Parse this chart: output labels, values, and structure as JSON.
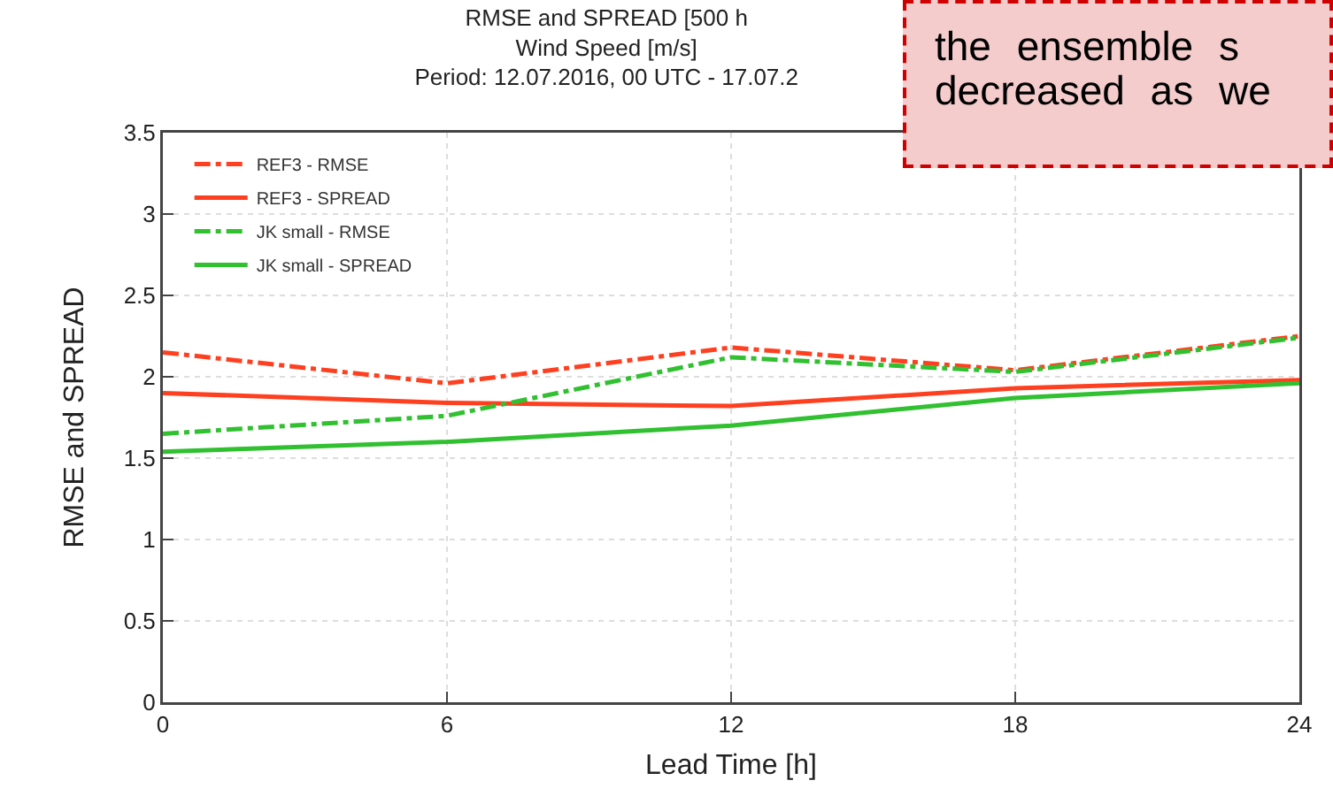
{
  "chart_data": {
    "type": "line",
    "title": "RMSE and SPREAD [500 h\nWind Speed [m/s]\nPeriod: 12.07.2016, 00 UTC - 17.07.2",
    "xlabel": "Lead Time [h]",
    "ylabel": "RMSE and SPREAD",
    "x": [
      0,
      6,
      12,
      18,
      24
    ],
    "series": [
      {
        "name": "REF3 - RMSE",
        "color": "#ff4020",
        "line_style": "dashed",
        "values": [
          2.15,
          1.96,
          2.18,
          2.04,
          2.25
        ]
      },
      {
        "name": "REF3 - SPREAD",
        "color": "#ff4020",
        "line_style": "solid",
        "values": [
          1.9,
          1.84,
          1.82,
          1.93,
          1.98
        ]
      },
      {
        "name": "JK small - RMSE",
        "color": "#30c030",
        "line_style": "dashed",
        "values": [
          1.65,
          1.76,
          2.12,
          2.03,
          2.24
        ]
      },
      {
        "name": "JK small - SPREAD",
        "color": "#30c030",
        "line_style": "solid",
        "values": [
          1.54,
          1.6,
          1.7,
          1.87,
          1.96
        ]
      }
    ],
    "xlim": [
      0,
      24
    ],
    "xticks": [
      0,
      6,
      12,
      18,
      24
    ],
    "ylim": [
      0,
      3.5
    ],
    "yticks": [
      0,
      0.5,
      1,
      1.5,
      2,
      2.5,
      3,
      3.5
    ],
    "grid": true,
    "legend": "top left",
    "marker": "none",
    "annotations": [
      "the ensemble s\ndecreased as we"
    ]
  }
}
